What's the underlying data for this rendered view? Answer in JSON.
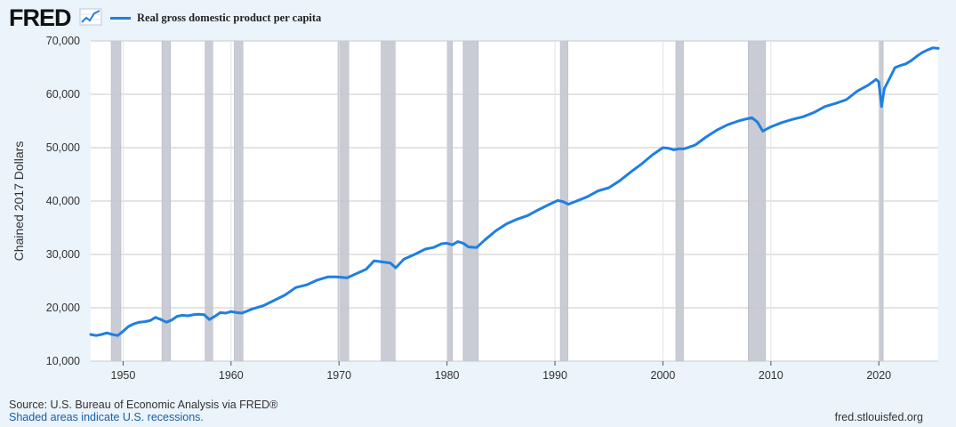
{
  "brand": {
    "name": "FRED",
    "icon": "trend-line-icon"
  },
  "footer": {
    "source": "Source: U.S. Bureau of Economic Analysis via FRED®",
    "note": "Shaded areas indicate U.S. recessions.",
    "site": "fred.stlouisfed.org"
  },
  "colors": {
    "series": "#1f7fe0",
    "recession": "#c9ccd4",
    "background": "#ebf3fb",
    "plot": "#ffffff"
  },
  "chart_data": {
    "type": "line",
    "title": "",
    "xlabel": "",
    "ylabel": "Chained 2017 Dollars",
    "xlim": [
      1947.0,
      2025.5
    ],
    "ylim": [
      10000,
      70000
    ],
    "yticks": [
      10000,
      20000,
      30000,
      40000,
      50000,
      60000,
      70000
    ],
    "ytick_labels": [
      "10,000",
      "20,000",
      "30,000",
      "40,000",
      "50,000",
      "60,000",
      "70,000"
    ],
    "xticks": [
      1950,
      1960,
      1970,
      1980,
      1990,
      2000,
      2010,
      2020
    ],
    "xtick_labels": [
      "1950",
      "1960",
      "1970",
      "1980",
      "1990",
      "2000",
      "2010",
      "2020"
    ],
    "grid": true,
    "legend_position": "top-left",
    "series": [
      {
        "name": "Real gross domestic product per capita",
        "x": [
          1947.0,
          1947.5,
          1948.0,
          1948.5,
          1949.0,
          1949.5,
          1950.0,
          1950.5,
          1951.0,
          1951.5,
          1952.0,
          1952.5,
          1953.0,
          1953.5,
          1954.0,
          1954.5,
          1955.0,
          1955.5,
          1956.0,
          1956.5,
          1957.0,
          1957.5,
          1958.0,
          1958.5,
          1959.0,
          1959.5,
          1960.0,
          1960.5,
          1961.0,
          1962.0,
          1963.0,
          1964.0,
          1965.0,
          1966.0,
          1967.0,
          1968.0,
          1969.0,
          1969.75,
          1970.25,
          1970.75,
          1971.5,
          1972.5,
          1973.25,
          1974.0,
          1974.75,
          1975.25,
          1976.0,
          1977.0,
          1978.0,
          1978.75,
          1979.5,
          1980.0,
          1980.5,
          1981.0,
          1981.5,
          1982.0,
          1982.75,
          1983.5,
          1984.5,
          1985.5,
          1986.5,
          1987.5,
          1988.5,
          1989.5,
          1990.25,
          1990.75,
          1991.25,
          1992.0,
          1993.0,
          1994.0,
          1995.0,
          1996.0,
          1997.0,
          1998.0,
          1999.0,
          2000.0,
          2000.5,
          2001.0,
          2001.5,
          2002.0,
          2003.0,
          2004.0,
          2005.0,
          2006.0,
          2007.0,
          2007.75,
          2008.25,
          2008.75,
          2009.25,
          2010.0,
          2011.0,
          2012.0,
          2013.0,
          2014.0,
          2015.0,
          2016.0,
          2017.0,
          2018.0,
          2019.0,
          2019.75,
          2020.0,
          2020.25,
          2020.5,
          2021.0,
          2021.5,
          2022.0,
          2022.5,
          2023.0,
          2023.5,
          2024.0,
          2024.5,
          2025.0,
          2025.5
        ],
        "values": [
          15000,
          14800,
          15000,
          15300,
          15000,
          14800,
          15600,
          16500,
          17000,
          17300,
          17400,
          17600,
          18200,
          17800,
          17300,
          17700,
          18400,
          18600,
          18500,
          18700,
          18800,
          18700,
          17800,
          18400,
          19100,
          19000,
          19300,
          19100,
          19000,
          19800,
          20400,
          21400,
          22400,
          23800,
          24300,
          25200,
          25800,
          25800,
          25700,
          25600,
          26300,
          27200,
          28800,
          28600,
          28400,
          27500,
          29100,
          30000,
          31000,
          31300,
          32000,
          32100,
          31800,
          32400,
          32100,
          31400,
          31300,
          32700,
          34400,
          35700,
          36600,
          37300,
          38400,
          39400,
          40100,
          39900,
          39400,
          40000,
          40800,
          41900,
          42500,
          43800,
          45400,
          46900,
          48600,
          50000,
          49900,
          49600,
          49800,
          49800,
          50500,
          52000,
          53300,
          54300,
          55000,
          55400,
          55600,
          54800,
          53100,
          53900,
          54700,
          55300,
          55800,
          56600,
          57700,
          58300,
          59000,
          60600,
          61700,
          62800,
          62300,
          57700,
          61000,
          63000,
          65000,
          65400,
          65700,
          66300,
          67100,
          67800,
          68300,
          68700,
          68600
        ]
      }
    ],
    "recessions": [
      [
        1948.9,
        1949.8
      ],
      [
        1953.6,
        1954.4
      ],
      [
        1957.6,
        1958.3
      ],
      [
        1960.3,
        1961.1
      ],
      [
        1969.9,
        1970.9
      ],
      [
        1973.9,
        1975.2
      ],
      [
        1980.0,
        1980.5
      ],
      [
        1981.5,
        1982.9
      ],
      [
        1990.5,
        1991.2
      ],
      [
        2001.2,
        2001.9
      ],
      [
        2007.9,
        2009.5
      ],
      [
        2020.0,
        2020.4
      ]
    ]
  }
}
